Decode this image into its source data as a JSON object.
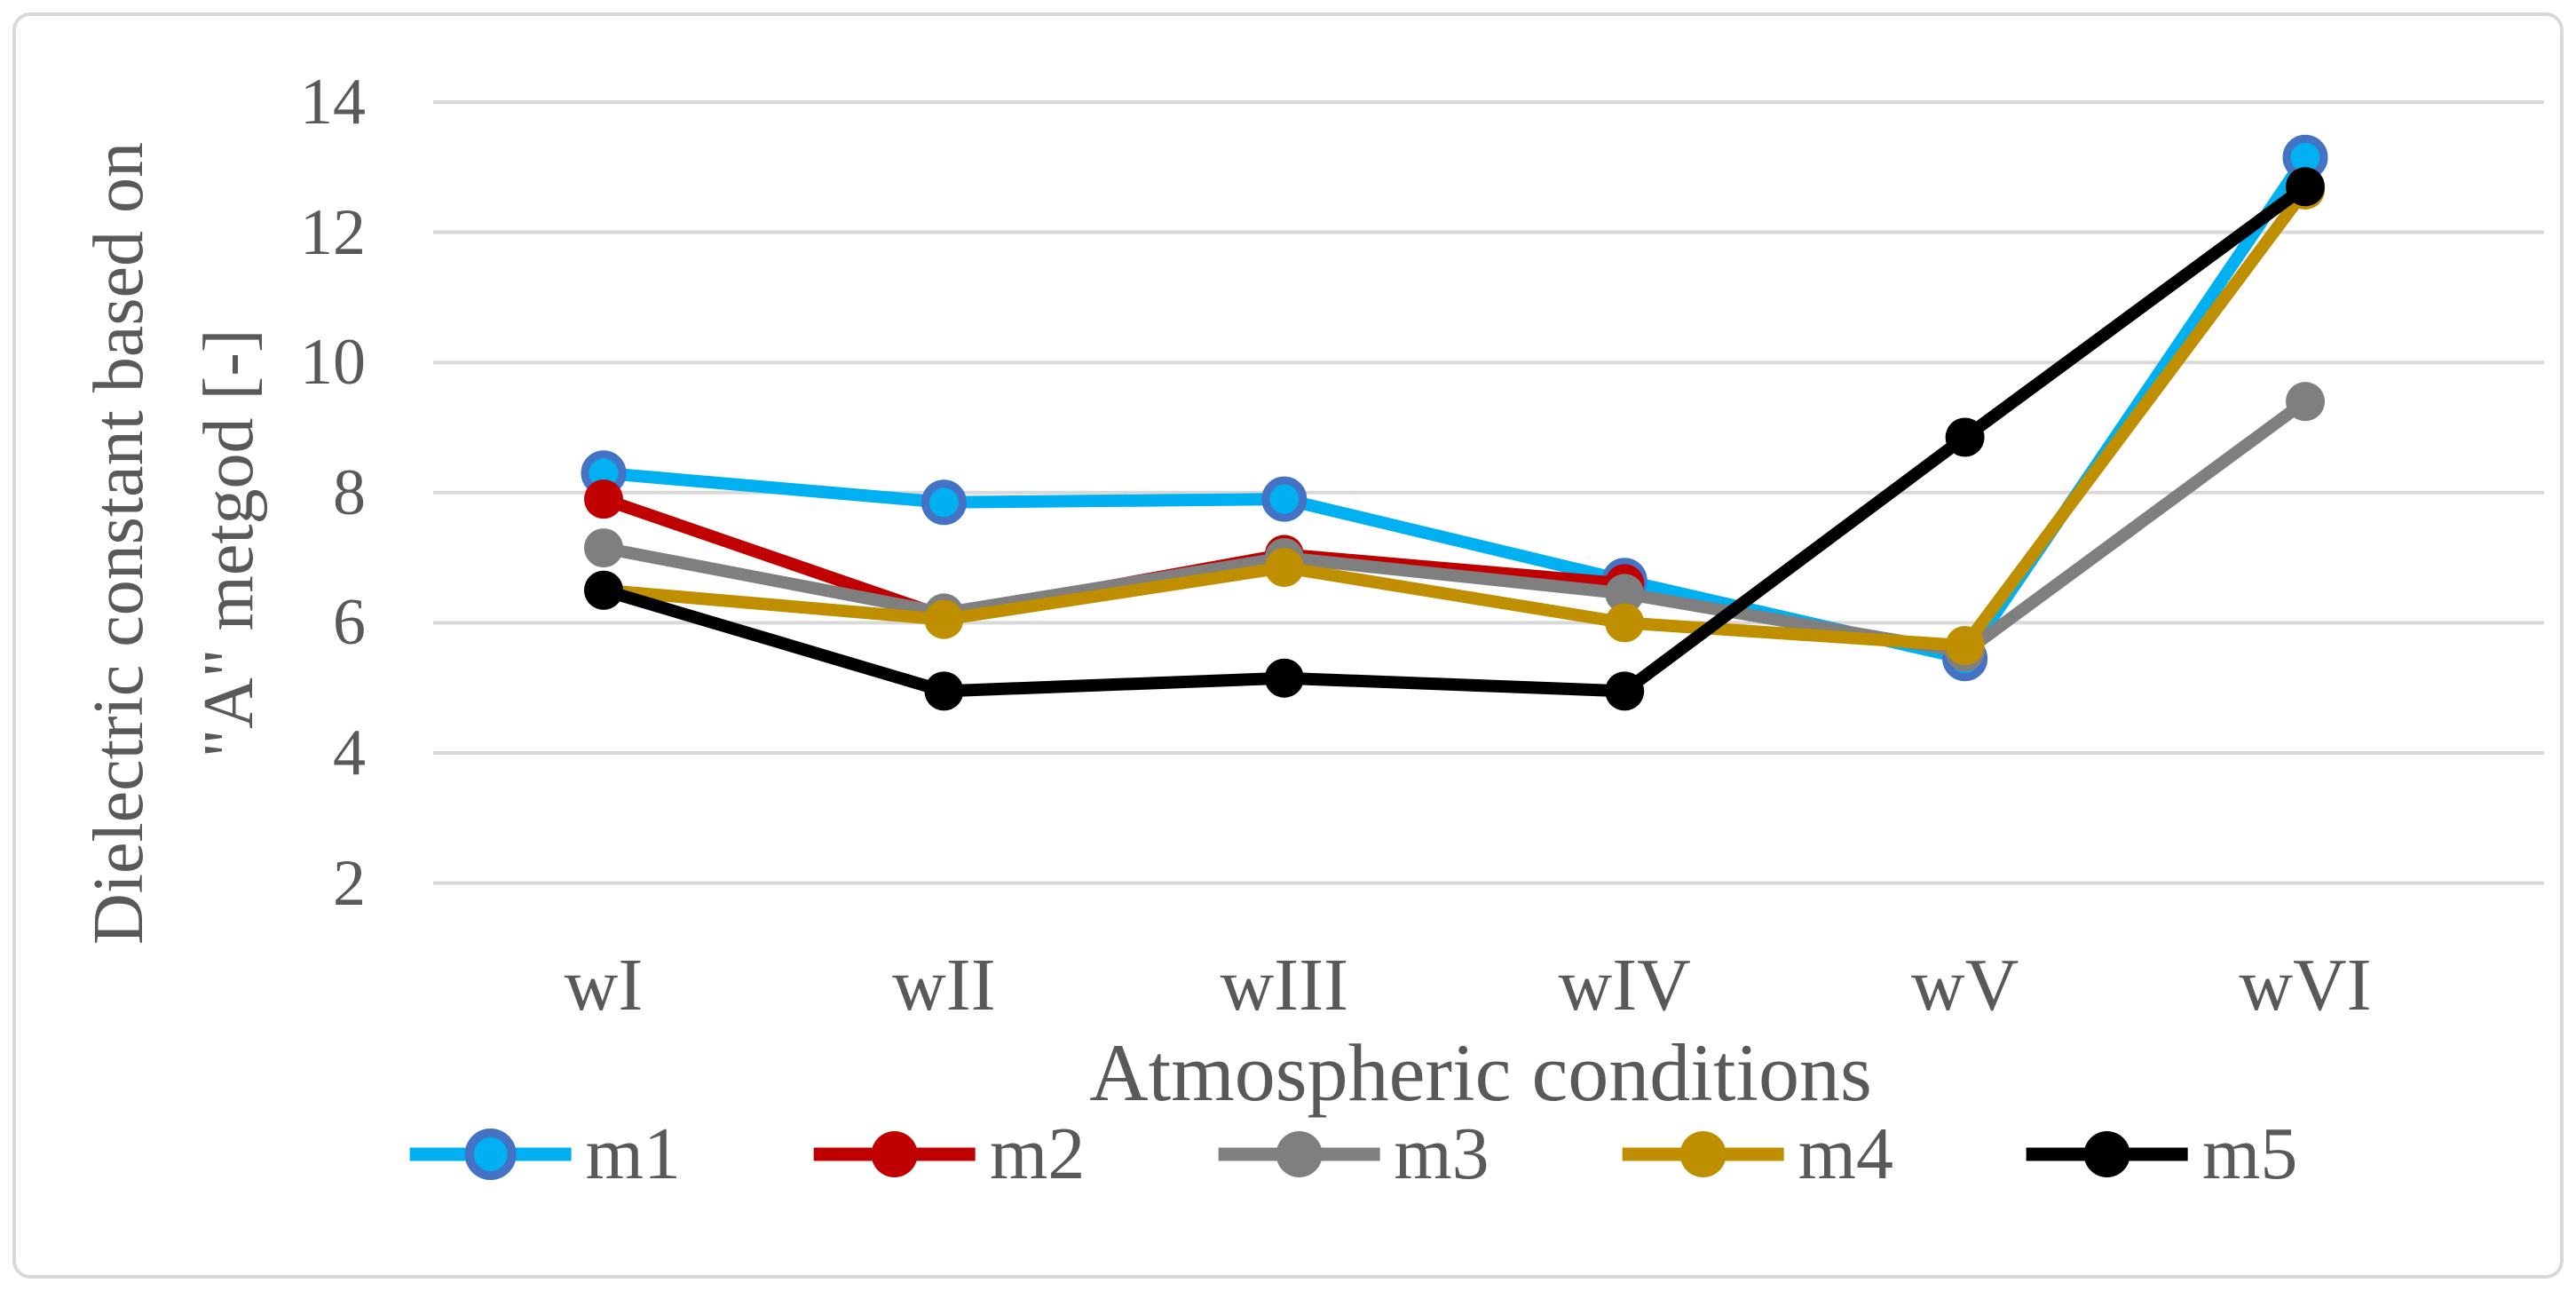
{
  "chart_data": {
    "type": "line",
    "title": "",
    "xlabel": "Atmospheric conditions",
    "ylabel_lines": [
      "Dielectric constant based on",
      "\"A\" metgod [-]"
    ],
    "categories": [
      "wI",
      "wII",
      "wIII",
      "wIV",
      "wV",
      "wVI"
    ],
    "yticks": [
      14,
      12,
      10,
      8,
      6,
      4,
      2
    ],
    "ylim": [
      2,
      14
    ],
    "grid": "horizontal-only",
    "legend_position": "bottom",
    "series": [
      {
        "name": "m1",
        "color": "#00B0F0",
        "marker_border": "#4472C4",
        "values": [
          8.3,
          7.85,
          7.9,
          6.65,
          5.45,
          13.15
        ]
      },
      {
        "name": "m2",
        "color": "#C00000",
        "marker_border": null,
        "values": [
          7.9,
          6.1,
          7.05,
          6.6,
          null,
          null
        ]
      },
      {
        "name": "m3",
        "color": "#7F7F7F",
        "marker_border": null,
        "values": [
          7.15,
          6.15,
          7.0,
          6.45,
          5.55,
          9.4
        ]
      },
      {
        "name": "m4",
        "color": "#BF8F00",
        "marker_border": null,
        "values": [
          6.5,
          6.05,
          6.85,
          6.0,
          5.65,
          12.65
        ]
      },
      {
        "name": "m5",
        "color": "#000000",
        "marker_border": null,
        "values": [
          6.5,
          4.95,
          5.15,
          4.95,
          8.85,
          12.7
        ]
      }
    ],
    "colors": {
      "gridline": "#D9D9D9",
      "frame_border": "#D9D9D9",
      "text": "#595959",
      "background": "#FFFFFF"
    }
  }
}
